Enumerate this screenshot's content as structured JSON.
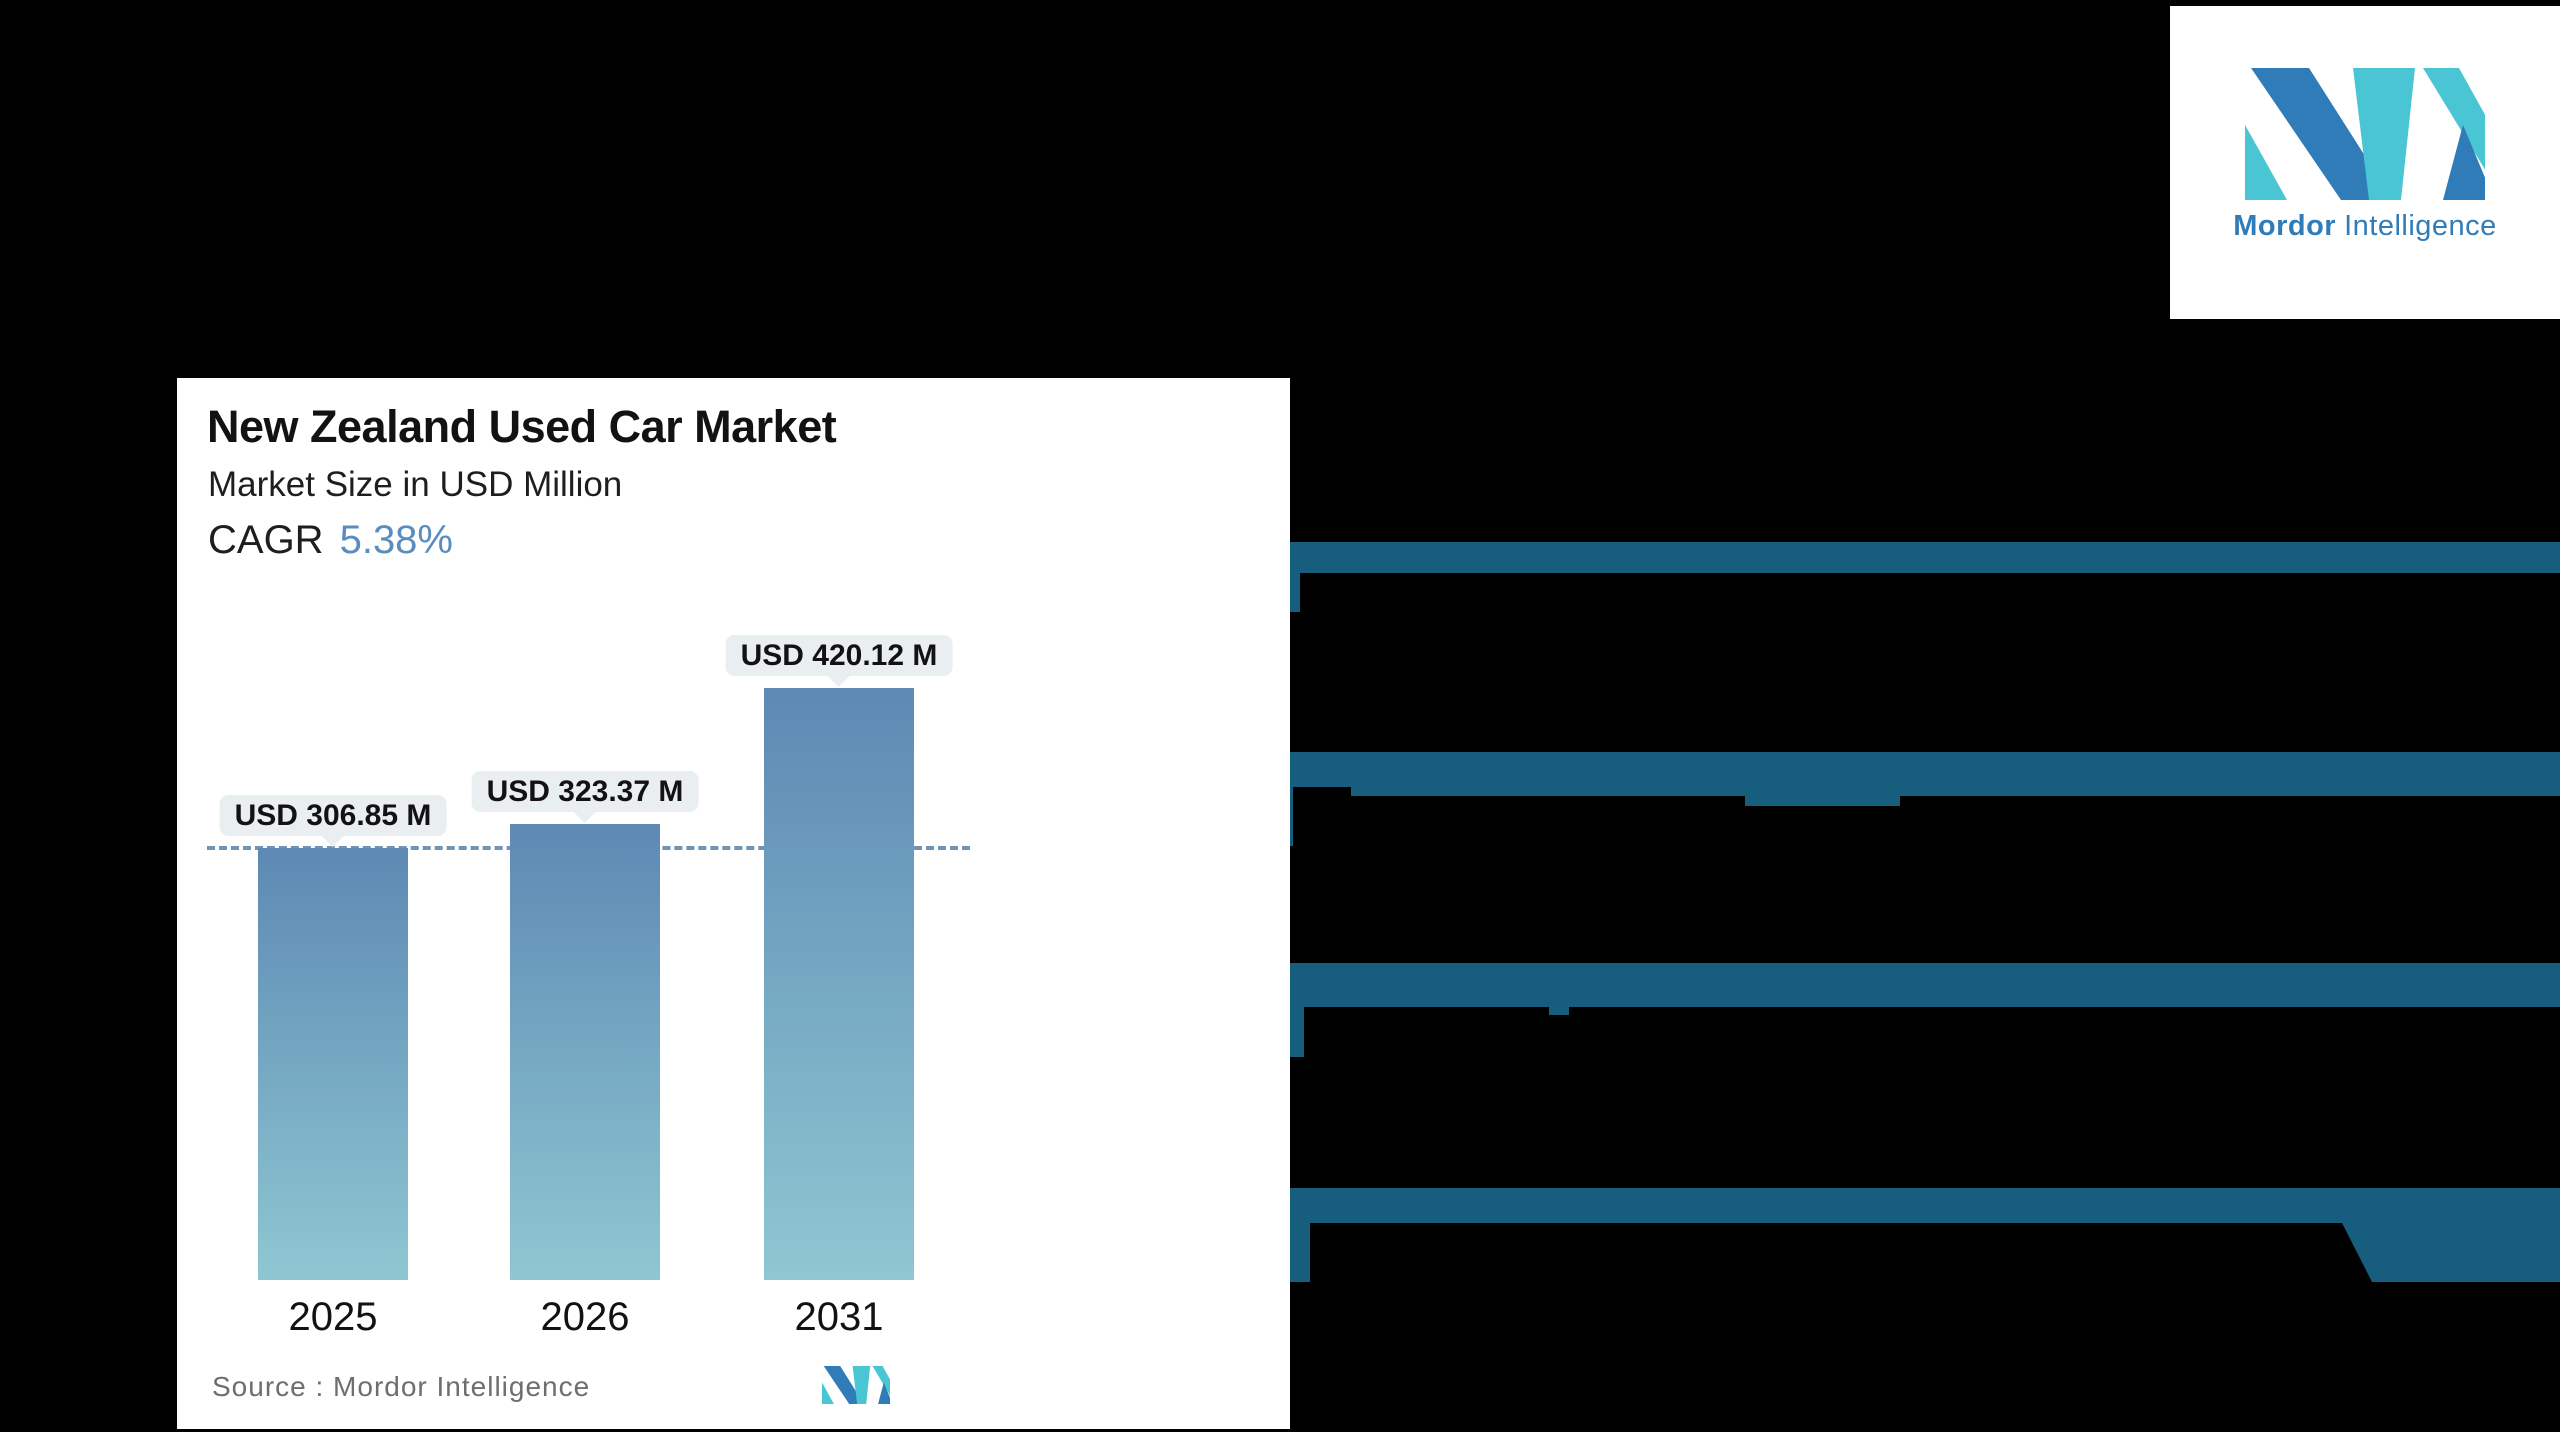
{
  "page": {
    "background_color": "#000000"
  },
  "brand": {
    "name_bold": "Mordor",
    "name_regular": "Intelligence",
    "logo_blue": "#2F7CB9",
    "logo_teal": "#49C5D3"
  },
  "chart_panel": {
    "title": "New Zealand Used Car Market",
    "subtitle": "Market Size in USD Million",
    "cagr_label": "CAGR",
    "cagr_value": "5.38%",
    "source_label": "Source :  Mordor Intelligence"
  },
  "chart_data": {
    "type": "bar",
    "title": "New Zealand Used Car Market",
    "ylabel": "Market Size in USD Million",
    "categories": [
      "2025",
      "2026",
      "2031"
    ],
    "values": [
      306.85,
      323.37,
      420.12
    ],
    "data_labels": [
      "USD 306.85 M",
      "USD 323.37 M",
      "USD 420.12 M"
    ],
    "cagr": "5.38%",
    "reference_line_value": 306.85,
    "ylim": [
      0,
      440
    ],
    "gridlines": "off",
    "legend": "none",
    "bar_color_top": "#5D89B3",
    "bar_color_bottom": "#8EC7D2",
    "callout_bg": "#E9EEF1",
    "dashed_line_color": "#6F94B5"
  },
  "right_panel": {
    "band_color": "#175E7E",
    "obscured_heading_lines": 2,
    "obscured_rows": 4
  },
  "colors": {
    "cagr_accent": "#5A8DBE",
    "source_text": "#6E6E6E",
    "panel_bg": "#FFFFFF",
    "text_dark": "#121212"
  }
}
